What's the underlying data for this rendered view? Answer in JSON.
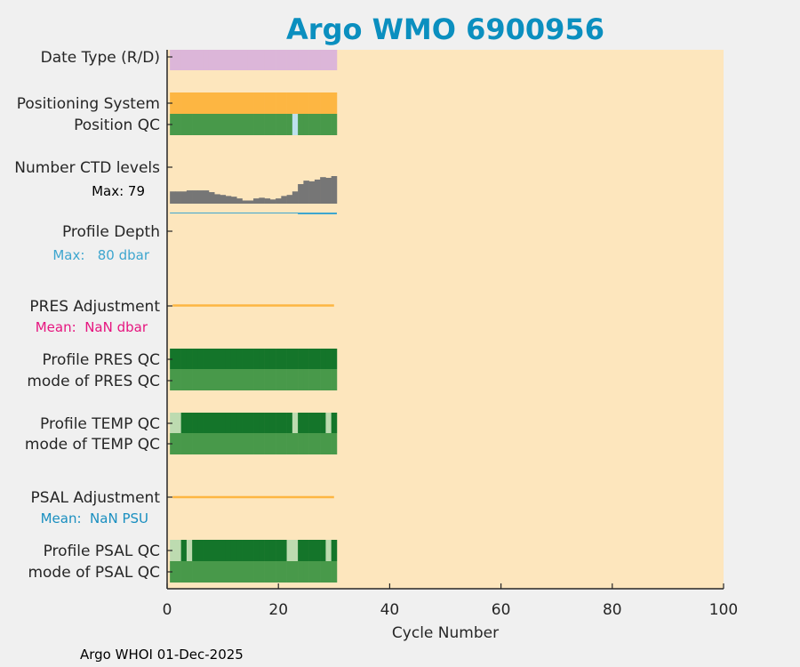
{
  "chart_data": {
    "type": "bar",
    "title": "Argo WMO 6900956",
    "xlabel": "Cycle Number",
    "xlim": [
      0,
      100
    ],
    "xticks": [
      "0",
      "20",
      "40",
      "60",
      "80",
      "100"
    ],
    "footer": "Argo WHOI 01-Dec-2025",
    "cycles": [
      1,
      30
    ],
    "rows": {
      "date_type": {
        "label": "Date Type (R/D)",
        "color": "#dcb6d9"
      },
      "positioning_system": {
        "label": "Positioning System",
        "color": "#fdb642"
      },
      "position_qc": {
        "label": "Position QC",
        "good_color": "#48994a",
        "flag_color": "#bde0ed",
        "flagged_cycles": [
          23
        ]
      },
      "ctd_levels": {
        "label": "Number CTD levels",
        "max_text": "Max: 79",
        "color": "#767676",
        "values": [
          35,
          35,
          35,
          38,
          38,
          38,
          38,
          33,
          27,
          25,
          22,
          20,
          15,
          9,
          9,
          15,
          17,
          15,
          12,
          15,
          22,
          25,
          35,
          56,
          66,
          64,
          69,
          76,
          74,
          79
        ]
      },
      "profile_depth": {
        "label": "Profile Depth",
        "max_text": "Max:   80 dbar",
        "color": "#3ea6cf"
      },
      "pres_adjustment": {
        "label": "PRES Adjustment",
        "mean_text": "Mean:  NaN dbar",
        "mean_color": "#e6157f",
        "line_color": "#fdb642"
      },
      "profile_pres_qc": {
        "label": "Profile PRES QC",
        "color": "#14752a",
        "flag_color": "#bddbb0",
        "flagged_cycles": []
      },
      "mode_pres_qc": {
        "label": "mode of PRES QC",
        "color": "#48994a"
      },
      "profile_temp_qc": {
        "label": "Profile TEMP QC",
        "color": "#14752a",
        "flag_color": "#bddbb0",
        "flagged_cycles": [
          1,
          2,
          23,
          29
        ]
      },
      "mode_temp_qc": {
        "label": "mode of TEMP QC",
        "color": "#48994a"
      },
      "psal_adjustment": {
        "label": "PSAL Adjustment",
        "mean_text": "Mean:  NaN PSU",
        "mean_color": "#1a8fc0",
        "line_color": "#fdb642"
      },
      "profile_psal_qc": {
        "label": "Profile PSAL QC",
        "color": "#14752a",
        "flag_color": "#bddbb0",
        "flagged_cycles": [
          1,
          2,
          4,
          22,
          23,
          29
        ]
      },
      "mode_psal_qc": {
        "label": "mode of PSAL QC",
        "color": "#48994a"
      }
    },
    "colors": {
      "background": "#fde6bd",
      "title": "#0b8fbf"
    }
  }
}
